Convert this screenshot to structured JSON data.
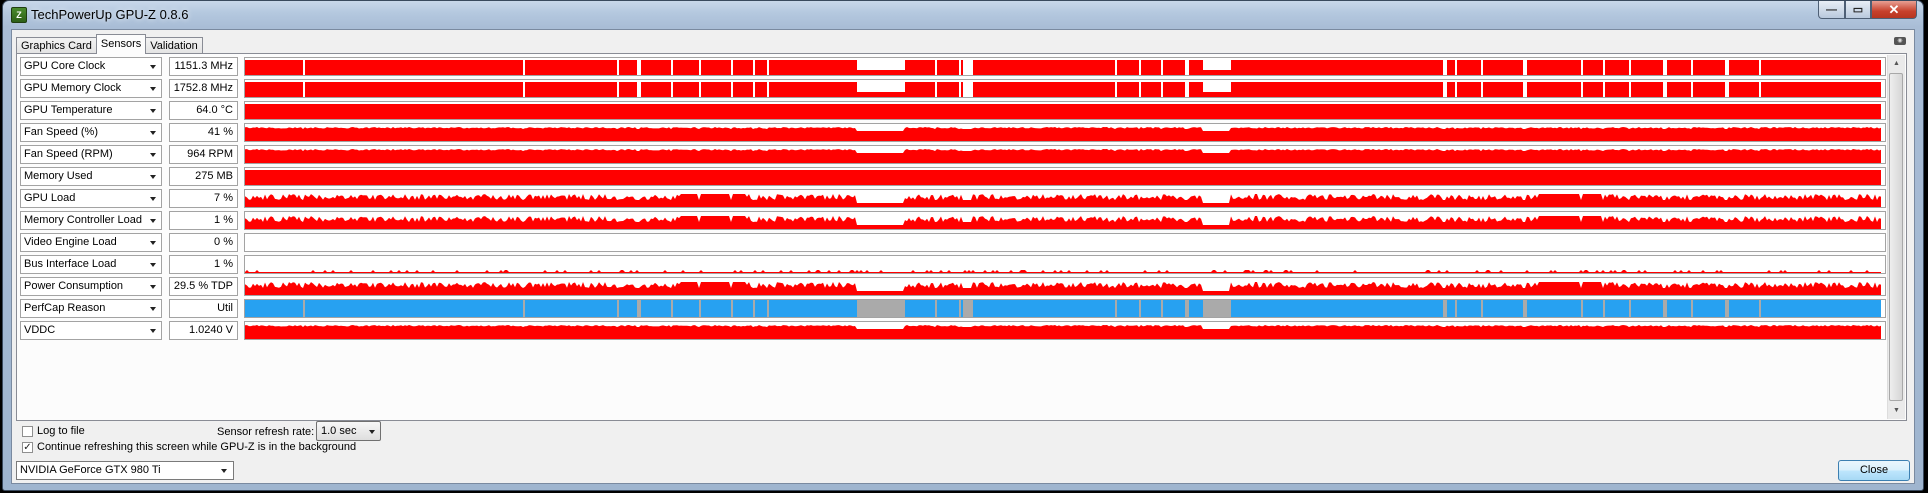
{
  "window": {
    "title": "TechPowerUp GPU-Z 0.8.6",
    "app_icon": "gpu-z-icon",
    "caption_buttons": {
      "minimize": "—",
      "maximize": "▭",
      "close": "✕"
    }
  },
  "tabs": [
    {
      "label": "Graphics Card",
      "active": false
    },
    {
      "label": "Sensors",
      "active": true
    },
    {
      "label": "Validation",
      "active": false
    }
  ],
  "colors": {
    "graph_red": "#ff0000",
    "perfcap_blue": "#27a1f1",
    "perfcap_gray": "#aaaaaa"
  },
  "sensors": [
    {
      "name": "GPU Core Clock",
      "value": "1151.3 MHz",
      "pattern": "clock"
    },
    {
      "name": "GPU Memory Clock",
      "value": "1752.8 MHz",
      "pattern": "clock"
    },
    {
      "name": "GPU Temperature",
      "value": "64.0 °C",
      "pattern": "full"
    },
    {
      "name": "Fan Speed (%)",
      "value": "41 %",
      "pattern": "fan"
    },
    {
      "name": "Fan Speed (RPM)",
      "value": "964 RPM",
      "pattern": "fan"
    },
    {
      "name": "Memory Used",
      "value": "275 MB",
      "pattern": "full"
    },
    {
      "name": "GPU Load",
      "value": "7 %",
      "pattern": "load"
    },
    {
      "name": "Memory Controller Load",
      "value": "1 %",
      "pattern": "load"
    },
    {
      "name": "Video Engine Load",
      "value": "0 %",
      "pattern": "empty"
    },
    {
      "name": "Bus Interface Load",
      "value": "1 %",
      "pattern": "bus"
    },
    {
      "name": "Power Consumption",
      "value": "29.5 % TDP",
      "pattern": "load"
    },
    {
      "name": "PerfCap Reason",
      "value": "Util",
      "pattern": "perfcap"
    },
    {
      "name": "VDDC",
      "value": "1.0240 V",
      "pattern": "fan"
    }
  ],
  "options": {
    "log_to_file": {
      "label": "Log to file",
      "checked": false
    },
    "continue_refreshing": {
      "label": "Continue refreshing this screen while GPU-Z is in the background",
      "checked": true
    },
    "refresh_rate_label": "Sensor refresh rate:",
    "refresh_rate_value": "1.0 sec"
  },
  "footer": {
    "gpu_selected": "NVIDIA GeForce GTX 980 Ti",
    "close_label": "Close"
  }
}
